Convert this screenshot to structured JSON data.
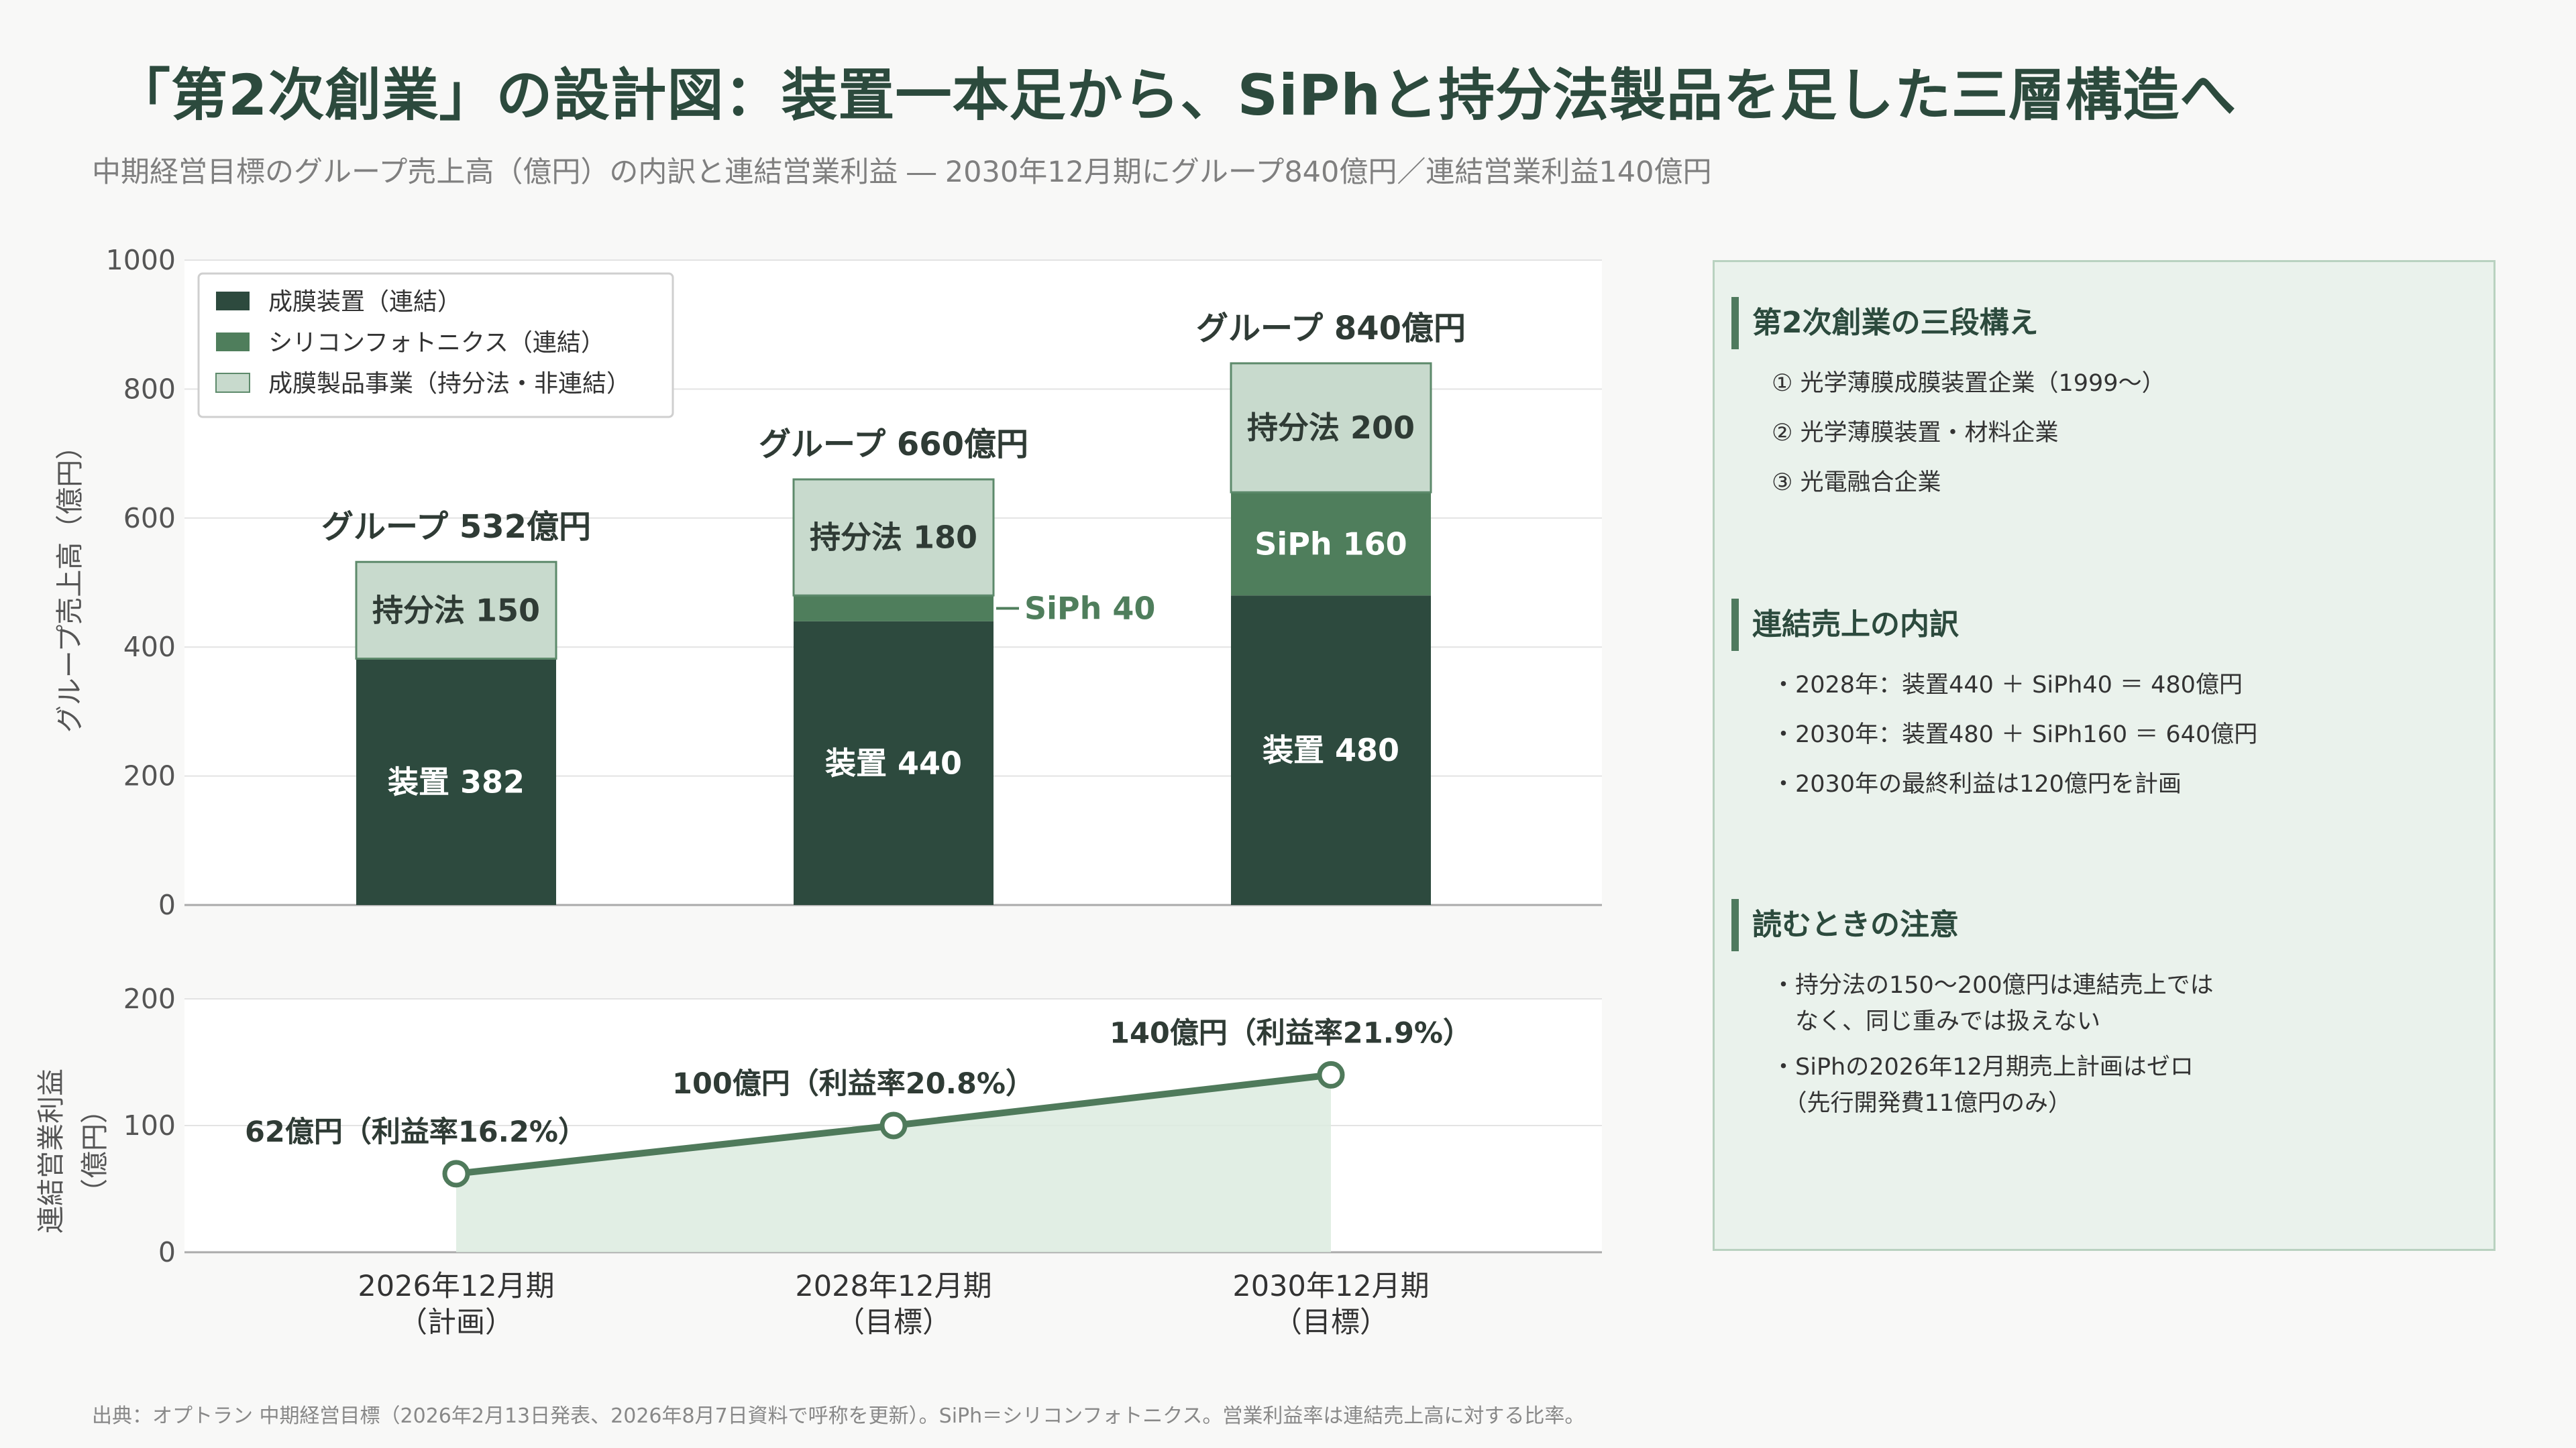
{
  "title": "「第2次創業」の設計図：装置一本足から、SiPhと持分法製品を足した三層構造へ",
  "subtitle": "中期経営目標のグループ売上高（億円）の内訳と連結営業利益 ― 2030年12月期にグループ840億円／連結営業利益140億円",
  "colors": {
    "equipment": "#2d4a3e",
    "siph": "#4f7e5c",
    "equity": "#c8dacd",
    "line": "#4f7a5b",
    "area": "#dcebdf",
    "panel_accent": "#4f7a5e"
  },
  "chart_data": [
    {
      "type": "bar",
      "stacked": true,
      "categories": [
        "2026年12月期\n（計画）",
        "2028年12月期\n（目標）",
        "2030年12月期\n（目標）"
      ],
      "series": [
        {
          "name": "成膜装置（連結）",
          "values": [
            382,
            440,
            480
          ],
          "labels": [
            "装置 382",
            "装置 440",
            "装置 480"
          ]
        },
        {
          "name": "シリコンフォトニクス（連結）",
          "values": [
            0,
            40,
            160
          ],
          "labels": [
            "",
            "SiPh 40",
            "SiPh 160"
          ]
        },
        {
          "name": "成膜製品事業（持分法・非連結）",
          "values": [
            150,
            180,
            200
          ],
          "labels": [
            "持分法 150",
            "持分法 180",
            "持分法 200"
          ]
        }
      ],
      "totals": [
        532,
        660,
        840
      ],
      "total_labels": [
        "グループ 532億円",
        "グループ 660億円",
        "グループ 840億円"
      ],
      "ylabel": "グループ売上高（億円）",
      "ylim": [
        0,
        1000
      ],
      "yticks": [
        "0",
        "200",
        "400",
        "600",
        "800",
        "1000"
      ],
      "legend": "top-left",
      "grid": true
    },
    {
      "type": "line",
      "fill": "area",
      "categories": [
        "2026年12月期\n（計画）",
        "2028年12月期\n（目標）",
        "2030年12月期\n（目標）"
      ],
      "values": [
        62,
        100,
        140
      ],
      "point_labels": [
        "62億円（利益率16.2%）",
        "100億円（利益率20.8%）",
        "140億円（利益率21.9%）"
      ],
      "ylabel_lines": [
        "連結営業利益",
        "（億円）"
      ],
      "ylim": [
        0,
        200
      ],
      "yticks": [
        "0",
        "100",
        "200"
      ],
      "grid": true
    }
  ],
  "panel": {
    "sections": [
      {
        "heading": "第2次創業の三段構え",
        "style": "list",
        "lines": [
          "① 光学薄膜成膜装置企業（1999〜）",
          "② 光学薄膜装置・材料企業",
          "③ 光電融合企業"
        ]
      },
      {
        "heading": "連結売上の内訳",
        "style": "list",
        "lines": [
          "・2028年：装置440 ＋ SiPh40 ＝ 480億円",
          "・2030年：装置480 ＋ SiPh160 ＝ 640億円",
          "・2030年の最終利益は120億円を計画"
        ]
      },
      {
        "heading": "読むときの注意",
        "style": "para",
        "lines": [
          "・持分法の150〜200億円は連結売上では\n　なく、同じ重みでは扱えない",
          "・SiPhの2026年12月期売上計画はゼロ\n　（先行開発費11億円のみ）"
        ]
      }
    ]
  },
  "footer": "出典：オプトラン 中期経営目標（2026年2月13日発表、2026年8月7日資料で呼称を更新）。SiPh＝シリコンフォトニクス。営業利益率は連結売上高に対する比率。"
}
